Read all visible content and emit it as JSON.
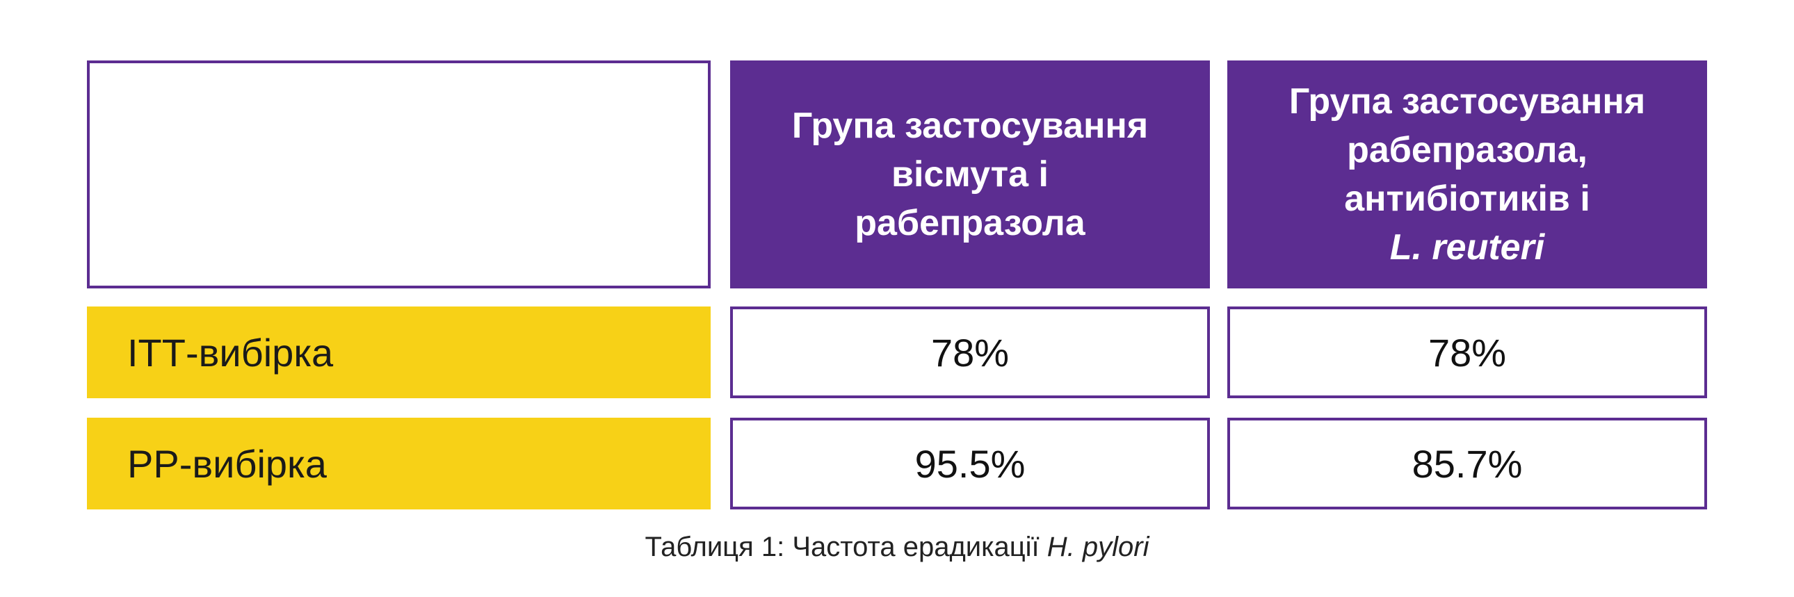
{
  "colors": {
    "header_bg": "#5c2d91",
    "row_label_bg": "#f7d117",
    "border": "#5c2d91"
  },
  "table": {
    "headers": [
      {
        "lines": [
          "Група застосування",
          "вісмута і",
          "рабепразола"
        ]
      },
      {
        "lines": [
          "Група застосування",
          "рабепразола,",
          "антибіотиків і"
        ],
        "italic_line": "L. reuteri"
      }
    ],
    "rows": [
      {
        "label": "ІТТ-вибірка",
        "values": [
          "78%",
          "78%"
        ]
      },
      {
        "label": "РР-вибірка",
        "values": [
          "95.5%",
          "85.7%"
        ]
      }
    ]
  },
  "caption": {
    "prefix": "Таблиця 1: Частота ерадикації ",
    "italic": "H. pylori"
  }
}
